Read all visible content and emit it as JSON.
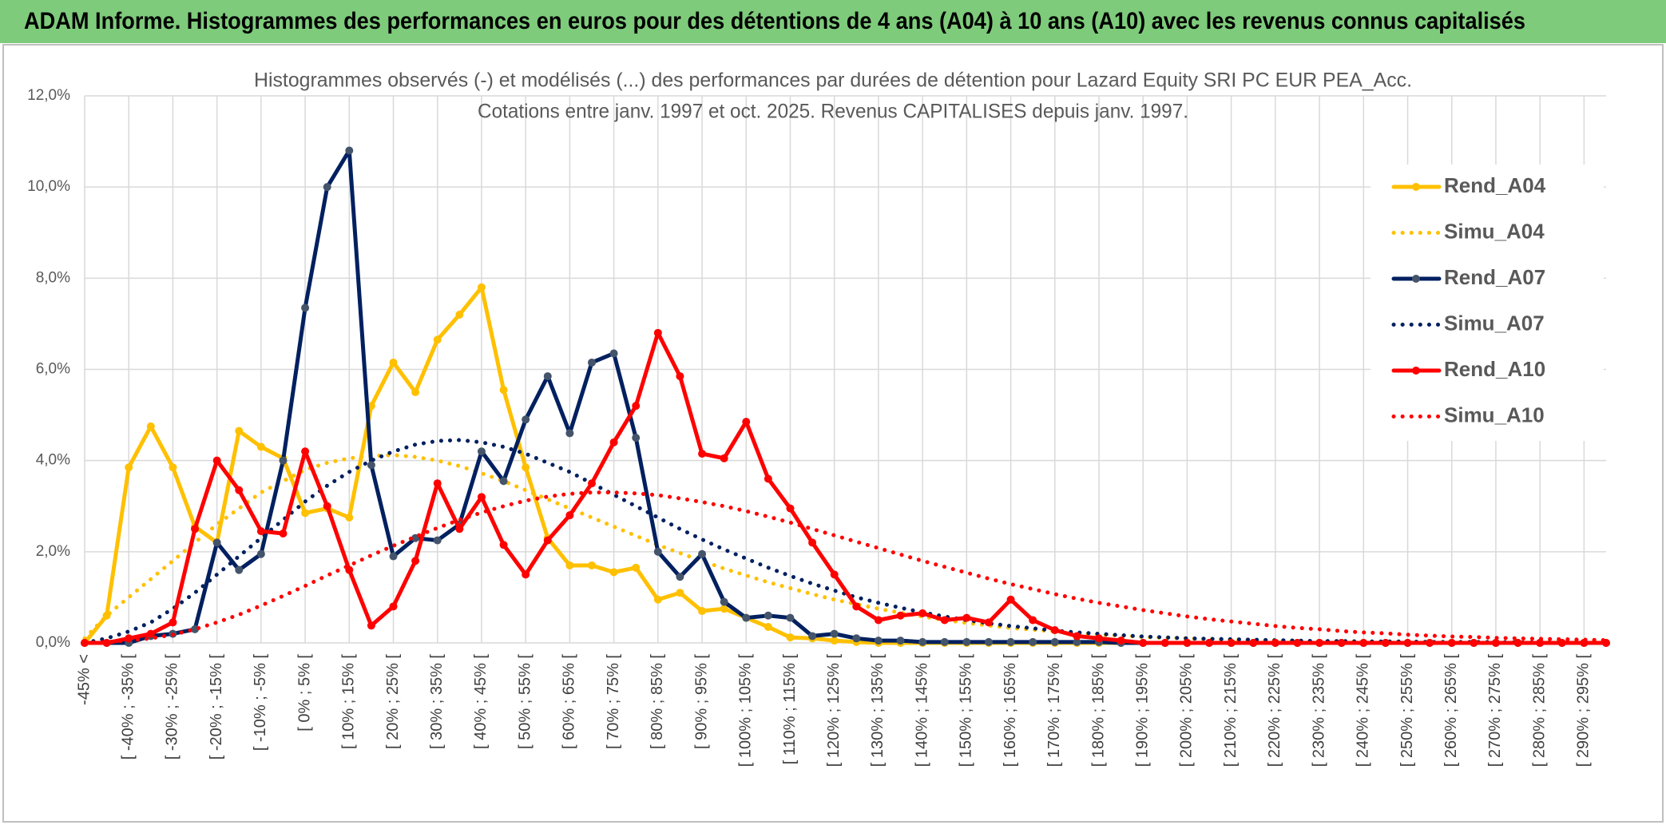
{
  "header": {
    "title": "ADAM Informe. Histogrammes des performances en euros pour des détentions de 4 ans (A04) à 10 ans (A10) avec les revenus connus capitalisés"
  },
  "chart_data": {
    "type": "line",
    "title": "Histogrammes observés (-) et modélisés (...) des performances par durées de détention pour Lazard Equity SRI PC EUR PEA_Acc.",
    "subtitle": "Cotations entre janv. 1997 et oct. 2025. Revenus CAPITALISES depuis janv. 1997.",
    "categories": [
      "-45% <",
      null,
      "[ -40% ; -35% [",
      null,
      "[ -30% ; -25% [",
      null,
      "[ -20% ; -15% [",
      null,
      "[ -10% ; -5% [",
      null,
      "[ 0% ; 5% [",
      null,
      "[ 10% ; 15% [",
      null,
      "[ 20% ; 25% [",
      null,
      "[ 30% ; 35% [",
      null,
      "[ 40% ; 45% [",
      null,
      "[ 50% ; 55% [",
      null,
      "[ 60% ; 65% [",
      null,
      "[ 70% ; 75% [",
      null,
      "[ 80% ; 85% [",
      null,
      "[ 90% ; 95% [",
      null,
      "[ 100% ; 105% [",
      null,
      "[ 110% ; 115% [",
      null,
      "[ 120% ; 125% [",
      null,
      "[ 130% ; 135% [",
      null,
      "[ 140% ; 145% [",
      null,
      "[ 150% ; 155% [",
      null,
      "[ 160% ; 165% [",
      null,
      "[ 170% ; 175% [",
      null,
      "[ 180% ; 185% [",
      null,
      "[ 190% ; 195% [",
      null,
      "[ 200% ; 205% [",
      null,
      "[ 210% ; 215% [",
      null,
      "[ 220% ; 225% [",
      null,
      "[ 230% ; 235% [",
      null,
      "[ 240% ; 245% [",
      null,
      "[ 250% ; 255% [",
      null,
      "[ 260% ; 265% [",
      null,
      "[ 270% ; 275% [",
      null,
      "[ 280% ; 285% [",
      null,
      "[ 290% ; 295% [",
      null
    ],
    "series": [
      {
        "name": "Rend_A04",
        "color": "#FFC000",
        "style": "solid",
        "marker_color": "#FFC000",
        "values": [
          0,
          0.6,
          3.85,
          4.75,
          3.85,
          2.55,
          2.2,
          4.65,
          4.3,
          4.05,
          2.85,
          2.95,
          2.75,
          5.2,
          6.15,
          5.5,
          6.65,
          7.2,
          7.8,
          5.55,
          3.85,
          2.3,
          1.7,
          1.7,
          1.55,
          1.65,
          0.95,
          1.1,
          0.7,
          0.75,
          0.55,
          0.35,
          0.12,
          0.1,
          0.05,
          0.02,
          0,
          0,
          0,
          0,
          0,
          0,
          0,
          0,
          0,
          0,
          0,
          0,
          0,
          0,
          0,
          0,
          0,
          0,
          0,
          0,
          0,
          0,
          0,
          0,
          0,
          0,
          0,
          0,
          0,
          0,
          0,
          0,
          0,
          0
        ]
      },
      {
        "name": "Simu_A04",
        "color": "#FFC000",
        "style": "dotted",
        "values": [
          0.1,
          0.6,
          1.0,
          1.4,
          1.8,
          2.2,
          2.6,
          2.95,
          3.3,
          3.55,
          3.8,
          3.95,
          4.05,
          4.1,
          4.12,
          4.08,
          4.0,
          3.88,
          3.72,
          3.55,
          3.35,
          3.15,
          2.95,
          2.75,
          2.55,
          2.35,
          2.15,
          1.97,
          1.8,
          1.63,
          1.48,
          1.33,
          1.2,
          1.07,
          0.95,
          0.85,
          0.75,
          0.66,
          0.58,
          0.5,
          0.44,
          0.38,
          0.33,
          0.29,
          0.25,
          0.21,
          0.18,
          0.16,
          0.13,
          0.11,
          0.1,
          0.08,
          0.07,
          0.06,
          0.05,
          0.04,
          0.03,
          0.03,
          0.03,
          0.02,
          0.02,
          0.02,
          0.02,
          0.01,
          0.01,
          0.01,
          0.01,
          0.01,
          0.01,
          0.01
        ]
      },
      {
        "name": "Rend_A07",
        "color": "#002060",
        "style": "solid",
        "marker_color": "#44546A",
        "values": [
          0,
          0,
          0,
          0.15,
          0.2,
          0.3,
          2.2,
          1.6,
          1.95,
          4.0,
          7.35,
          10.0,
          10.8,
          3.9,
          1.9,
          2.3,
          2.25,
          2.6,
          4.2,
          3.55,
          4.9,
          5.85,
          4.6,
          6.15,
          6.35,
          4.5,
          2.0,
          1.45,
          1.95,
          0.9,
          0.55,
          0.6,
          0.55,
          0.15,
          0.2,
          0.1,
          0.05,
          0.05,
          0.02,
          0.02,
          0.02,
          0.02,
          0.02,
          0.02,
          0.02,
          0.02,
          0.02,
          0,
          0,
          0,
          0,
          0,
          0,
          0,
          0,
          0,
          0,
          0,
          0,
          0,
          0,
          0,
          0,
          0,
          0,
          0,
          0,
          0,
          0,
          0
        ]
      },
      {
        "name": "Simu_A07",
        "color": "#002060",
        "style": "dotted",
        "values": [
          0,
          0.1,
          0.25,
          0.45,
          0.75,
          1.1,
          1.5,
          1.9,
          2.3,
          2.7,
          3.1,
          3.45,
          3.75,
          4.0,
          4.2,
          4.35,
          4.43,
          4.45,
          4.4,
          4.3,
          4.15,
          3.95,
          3.75,
          3.5,
          3.25,
          3.0,
          2.75,
          2.5,
          2.27,
          2.05,
          1.85,
          1.65,
          1.47,
          1.3,
          1.15,
          1.0,
          0.88,
          0.77,
          0.67,
          0.58,
          0.5,
          0.43,
          0.37,
          0.32,
          0.27,
          0.23,
          0.2,
          0.17,
          0.14,
          0.12,
          0.1,
          0.09,
          0.08,
          0.07,
          0.06,
          0.05,
          0.04,
          0.04,
          0.03,
          0.03,
          0.03,
          0.02,
          0.02,
          0.02,
          0.02,
          0.01,
          0.01,
          0.01,
          0.01,
          0.01
        ]
      },
      {
        "name": "Rend_A10",
        "color": "#FF0000",
        "style": "solid",
        "marker_color": "#FF0000",
        "values": [
          0,
          0,
          0.1,
          0.2,
          0.45,
          2.5,
          4.0,
          3.35,
          2.45,
          2.4,
          4.2,
          3.0,
          1.6,
          0.38,
          0.8,
          1.8,
          3.5,
          2.5,
          3.2,
          2.15,
          1.5,
          2.25,
          2.8,
          3.5,
          4.4,
          5.2,
          6.8,
          5.85,
          4.15,
          4.05,
          4.85,
          3.6,
          2.95,
          2.2,
          1.5,
          0.8,
          0.5,
          0.6,
          0.65,
          0.5,
          0.55,
          0.45,
          0.95,
          0.5,
          0.28,
          0.15,
          0.1,
          0.05,
          0,
          0,
          0,
          0,
          0,
          0,
          0,
          0,
          0,
          0,
          0,
          0,
          0,
          0,
          0,
          0,
          0,
          0,
          0,
          0,
          0,
          0
        ]
      },
      {
        "name": "Simu_A10",
        "color": "#FF0000",
        "style": "dotted",
        "values": [
          0,
          0.02,
          0.05,
          0.1,
          0.18,
          0.3,
          0.45,
          0.62,
          0.82,
          1.03,
          1.25,
          1.48,
          1.7,
          1.92,
          2.13,
          2.33,
          2.52,
          2.7,
          2.86,
          3.0,
          3.12,
          3.21,
          3.27,
          3.3,
          3.3,
          3.28,
          3.24,
          3.17,
          3.09,
          3.0,
          2.89,
          2.77,
          2.64,
          2.5,
          2.36,
          2.22,
          2.08,
          1.94,
          1.8,
          1.67,
          1.54,
          1.41,
          1.29,
          1.18,
          1.07,
          0.97,
          0.88,
          0.8,
          0.72,
          0.65,
          0.58,
          0.52,
          0.47,
          0.42,
          0.37,
          0.33,
          0.3,
          0.26,
          0.23,
          0.21,
          0.18,
          0.16,
          0.14,
          0.13,
          0.11,
          0.1,
          0.09,
          0.08,
          0.07,
          0.06
        ]
      }
    ],
    "ylim": [
      0,
      12
    ],
    "yticks": [
      {
        "value": 0,
        "label": "0,0%"
      },
      {
        "value": 2,
        "label": "2,0%"
      },
      {
        "value": 4,
        "label": "4,0%"
      },
      {
        "value": 6,
        "label": "6,0%"
      },
      {
        "value": 8,
        "label": "8,0%"
      },
      {
        "value": 10,
        "label": "10,0%"
      },
      {
        "value": 12,
        "label": "12,0%"
      }
    ],
    "grid": true,
    "legend": "right"
  }
}
